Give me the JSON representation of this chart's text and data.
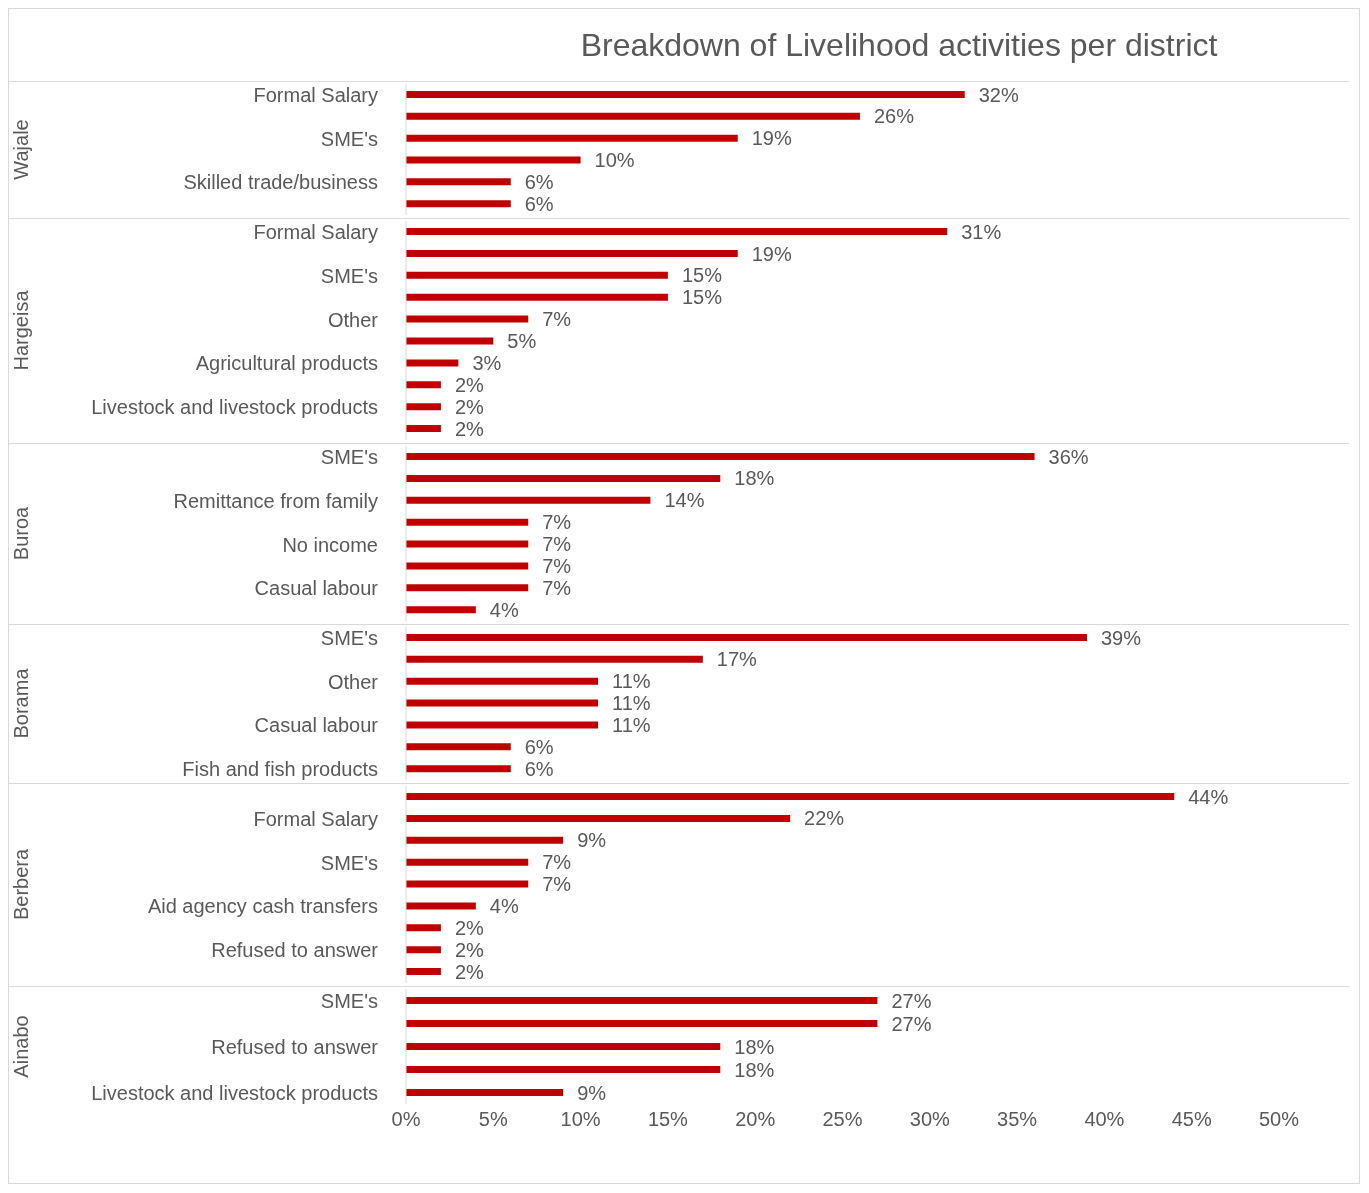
{
  "chart_data": [
    {
      "type": "bar",
      "orientation": "horizontal",
      "title": "Breakdown of Livelihood activities per district",
      "ylabel": "Wajale",
      "categories": [
        "Formal Salary",
        null,
        "SME's",
        null,
        "Skilled trade/business",
        null
      ],
      "values": [
        32,
        26,
        19,
        10,
        6,
        6
      ],
      "value_labels": [
        "32%",
        "26%",
        "19%",
        "10%",
        "6%",
        "6%"
      ],
      "color": "#c00000",
      "xlim": [
        0,
        50
      ],
      "tick_labels": "y"
    },
    {
      "type": "bar",
      "orientation": "horizontal",
      "ylabel": "Hargeisa",
      "categories": [
        "Formal Salary",
        null,
        "SME's",
        null,
        "Other",
        null,
        "Agricultural products",
        null,
        "Livestock and livestock products",
        null
      ],
      "values": [
        31,
        19,
        15,
        15,
        7,
        5,
        3,
        2,
        2,
        2
      ],
      "value_labels": [
        "31%",
        "19%",
        "15%",
        "15%",
        "7%",
        "5%",
        "3%",
        "2%",
        "2%",
        "2%"
      ],
      "color": "#c00000",
      "xlim": [
        0,
        50
      ],
      "tick_labels": "y"
    },
    {
      "type": "bar",
      "orientation": "horizontal",
      "ylabel": "Buroa",
      "categories": [
        "SME's",
        null,
        "Remittance from family",
        null,
        "No income",
        null,
        "Casual labour",
        null
      ],
      "values": [
        36,
        18,
        14,
        7,
        7,
        7,
        7,
        4
      ],
      "value_labels": [
        "36%",
        "18%",
        "14%",
        "7%",
        "7%",
        "7%",
        "7%",
        "4%"
      ],
      "color": "#c00000",
      "xlim": [
        0,
        50
      ],
      "tick_labels": "y"
    },
    {
      "type": "bar",
      "orientation": "horizontal",
      "ylabel": "Borama",
      "categories": [
        "SME's",
        null,
        "Other",
        null,
        "Casual labour",
        null,
        "Fish and fish products"
      ],
      "values": [
        39,
        17,
        11,
        11,
        11,
        6,
        6
      ],
      "value_labels": [
        "39%",
        "17%",
        "11%",
        "11%",
        "11%",
        "6%",
        "6%"
      ],
      "color": "#c00000",
      "xlim": [
        0,
        50
      ],
      "tick_labels": "y"
    },
    {
      "type": "bar",
      "orientation": "horizontal",
      "ylabel": "Berbera",
      "categories": [
        null,
        "Formal Salary",
        null,
        "SME's",
        null,
        "Aid agency cash transfers",
        null,
        "Refused to answer",
        null
      ],
      "values": [
        44,
        22,
        9,
        7,
        7,
        4,
        2,
        2,
        2
      ],
      "value_labels": [
        "44%",
        "22%",
        "9%",
        "7%",
        "7%",
        "4%",
        "2%",
        "2%",
        "2%"
      ],
      "color": "#c00000",
      "xlim": [
        0,
        50
      ],
      "tick_labels": "y"
    },
    {
      "type": "bar",
      "orientation": "horizontal",
      "ylabel": "Ainabo",
      "categories": [
        "SME's",
        null,
        "Refused to answer",
        null,
        "Livestock and livestock products"
      ],
      "values": [
        27,
        27,
        18,
        18,
        9
      ],
      "value_labels": [
        "27%",
        "27%",
        "18%",
        "18%",
        "9%"
      ],
      "color": "#c00000",
      "xlim": [
        0,
        50
      ],
      "xticks": [
        {
          "value": 0,
          "label": "0%"
        },
        {
          "value": 5,
          "label": "5%"
        },
        {
          "value": 10,
          "label": "10%"
        },
        {
          "value": 15,
          "label": "15%"
        },
        {
          "value": 20,
          "label": "20%"
        },
        {
          "value": 25,
          "label": "25%"
        },
        {
          "value": 30,
          "label": "30%"
        },
        {
          "value": 35,
          "label": "35%"
        },
        {
          "value": 40,
          "label": "40%"
        },
        {
          "value": 45,
          "label": "45%"
        },
        {
          "value": 50,
          "label": "50%"
        }
      ]
    }
  ]
}
